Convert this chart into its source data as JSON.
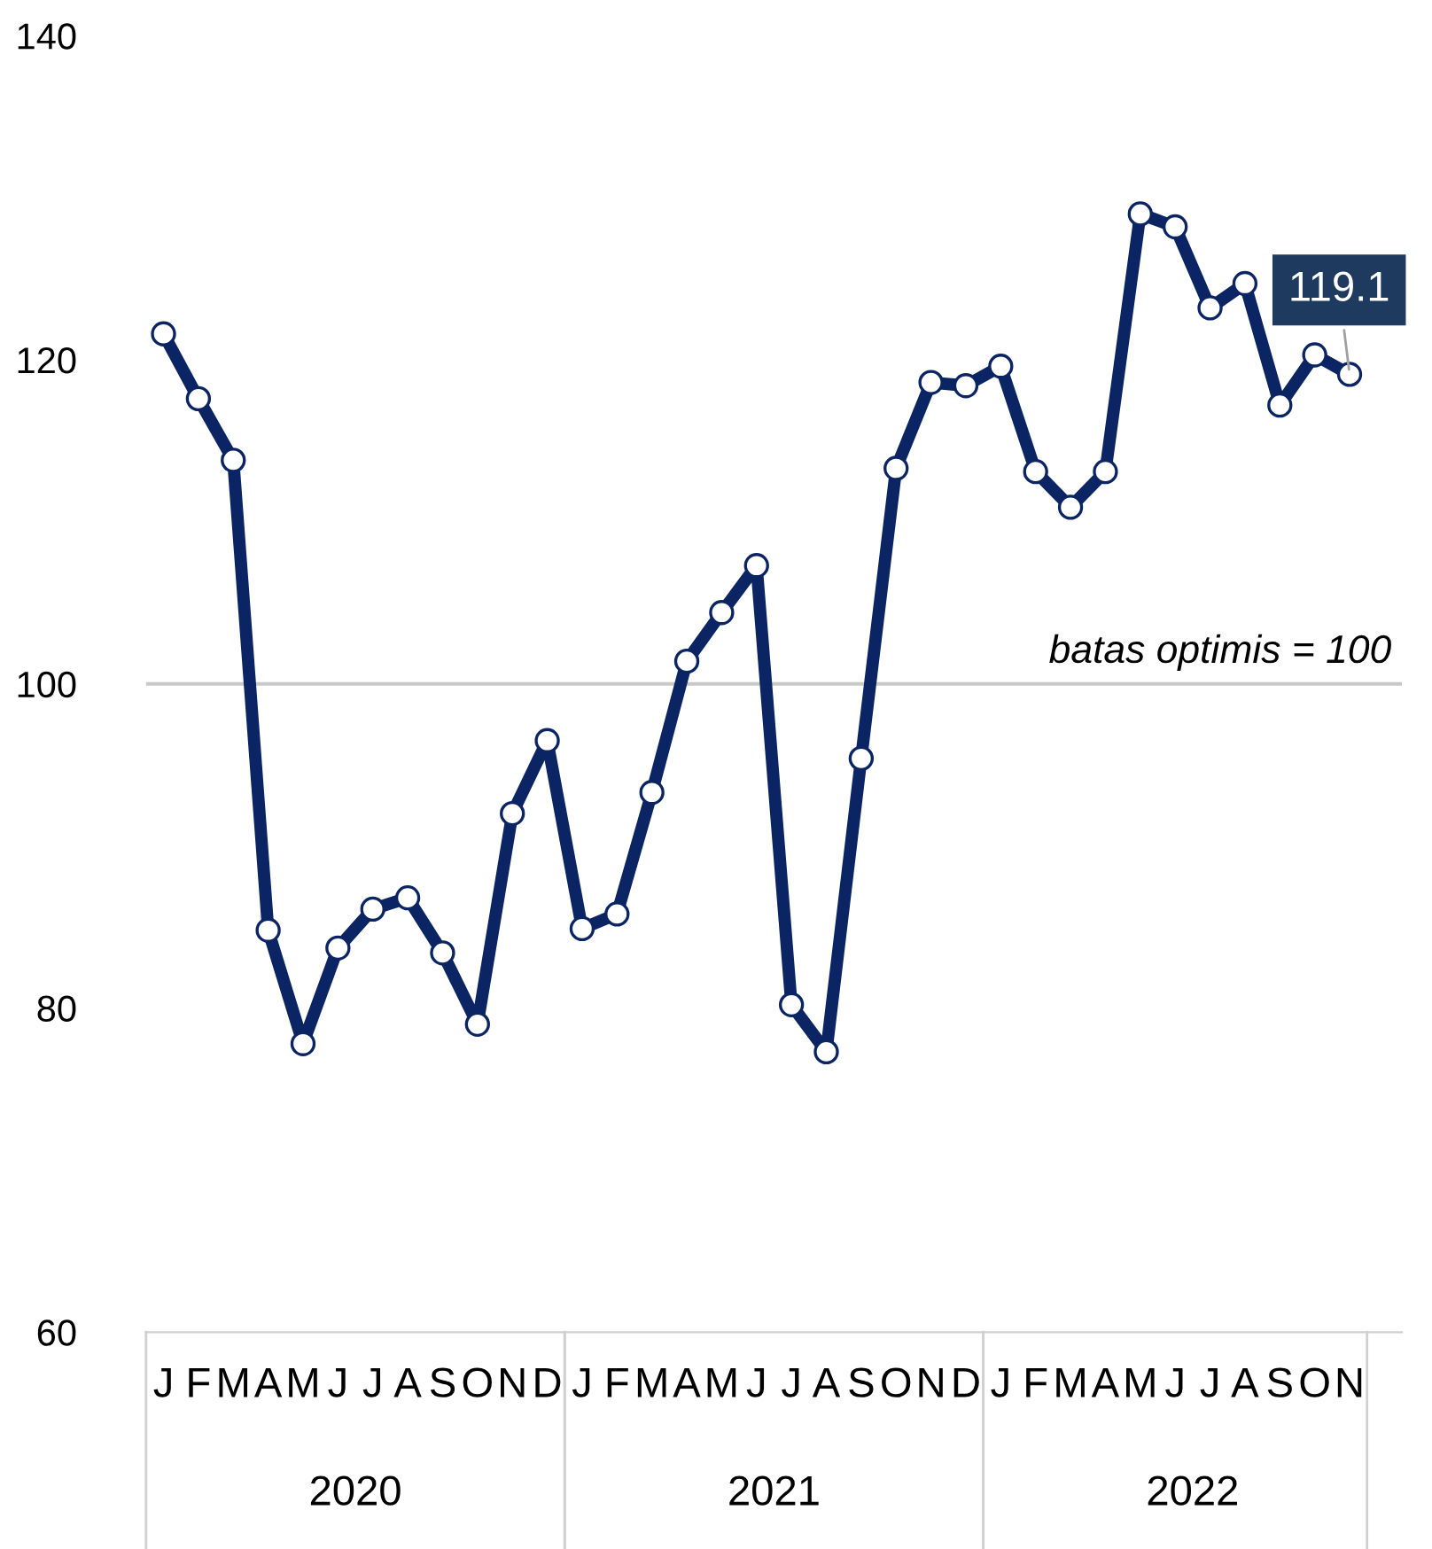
{
  "chart_data": {
    "type": "line",
    "categories": [
      "J",
      "F",
      "M",
      "A",
      "M",
      "J",
      "J",
      "A",
      "S",
      "O",
      "N",
      "D",
      "J",
      "F",
      "M",
      "A",
      "M",
      "J",
      "J",
      "A",
      "S",
      "O",
      "N",
      "D",
      "J",
      "F",
      "M",
      "A",
      "M",
      "J",
      "J",
      "A",
      "S",
      "O",
      "N"
    ],
    "series": [
      {
        "color": "#0b2463",
        "values": [
          121.6,
          117.6,
          113.8,
          84.8,
          77.8,
          83.7,
          86.1,
          86.8,
          83.4,
          79.0,
          92.0,
          96.5,
          84.9,
          85.8,
          93.3,
          101.4,
          104.4,
          107.3,
          80.2,
          77.3,
          95.4,
          113.3,
          118.6,
          118.4,
          119.6,
          113.1,
          110.9,
          113.1,
          129.0,
          128.2,
          123.2,
          124.7,
          117.2,
          120.3,
          119.1
        ],
        "value_labels": [
          null,
          null,
          null,
          null,
          null,
          null,
          null,
          null,
          null,
          null,
          null,
          null,
          null,
          null,
          null,
          null,
          null,
          null,
          null,
          null,
          null,
          null,
          null,
          null,
          null,
          null,
          null,
          null,
          null,
          null,
          null,
          null,
          null,
          null,
          "119.1"
        ]
      }
    ],
    "ylim": [
      60,
      140
    ],
    "yticks": [
      60,
      80,
      100,
      120,
      140
    ],
    "grid": false,
    "marker": "circle",
    "line_style": "solid",
    "legend": false,
    "ref_lines": [
      {
        "axis": "y",
        "value": 100,
        "label": "batas optimis = 100",
        "color": "#c8c8c8"
      }
    ],
    "annotations": [
      "2020",
      "2021",
      "2022"
    ]
  }
}
